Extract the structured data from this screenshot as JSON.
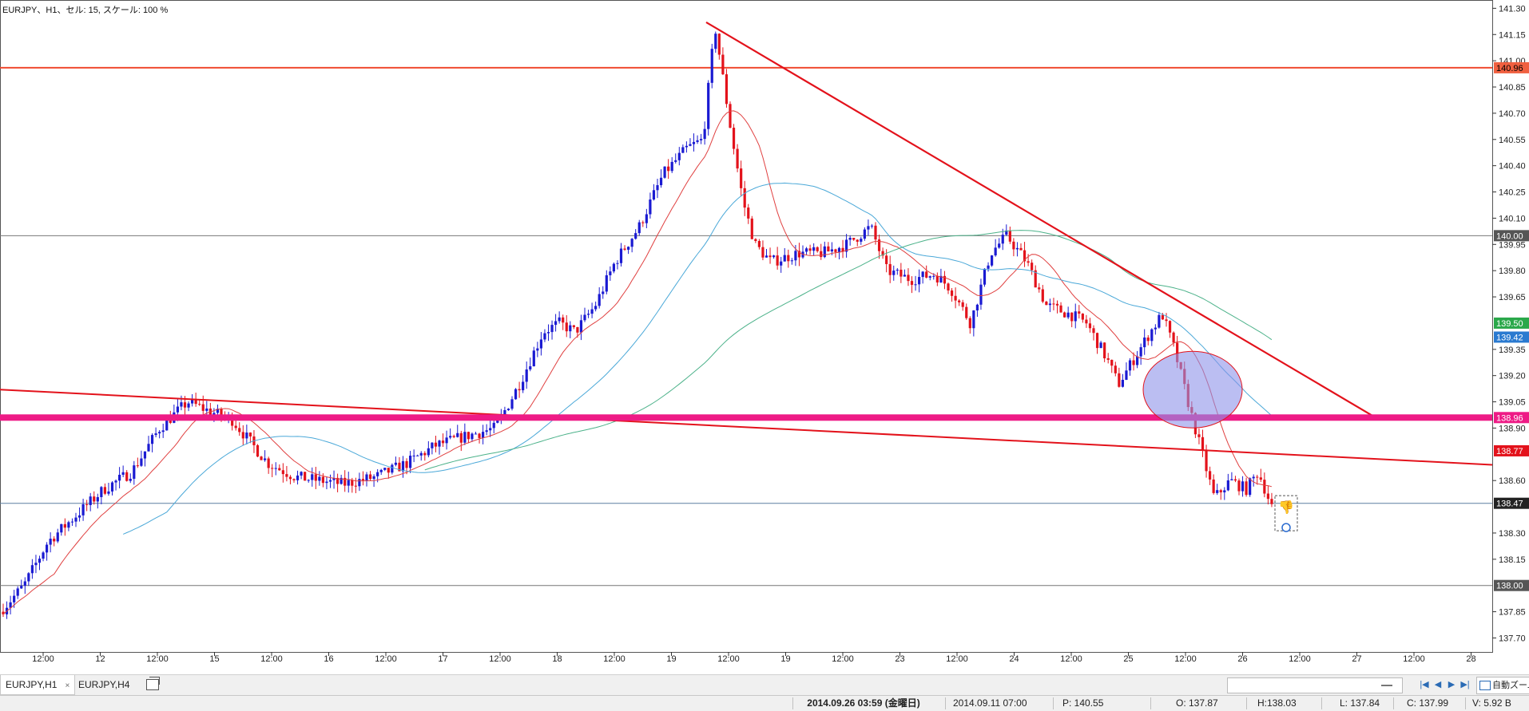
{
  "chart_header": {
    "title": "EURJPY、H1、セル: 15, スケール: 100 %"
  },
  "colors": {
    "bull_candle": "#1a1ad2",
    "bear_candle": "#e3121b",
    "ma_fast": "#e04040",
    "ma_mid": "#4aa8d8",
    "ma_slow": "#4cb28a",
    "trendline": "#e3121b",
    "support_band": "#ee1b86",
    "highlight_ellipse": "#8e92ea"
  },
  "price_axis": {
    "ticks": [
      "141.30",
      "141.15",
      "141.00",
      "140.85",
      "140.70",
      "140.55",
      "140.40",
      "140.25",
      "140.10",
      "139.95",
      "139.80",
      "139.65",
      "139.35",
      "139.20",
      "139.05",
      "138.90",
      "138.60",
      "138.30",
      "138.15",
      "137.85",
      "137.70"
    ],
    "min": 137.62,
    "max": 141.32
  },
  "price_markers": [
    {
      "label": "140.96",
      "value": 140.96,
      "bg": "#f06040",
      "fg": "#000000"
    },
    {
      "label": "140.00",
      "value": 140.0,
      "bg": "#555555",
      "fg": "#ffffff"
    },
    {
      "label": "139.50",
      "value": 139.5,
      "bg": "#2aa84a",
      "fg": "#ffffff"
    },
    {
      "label": "139.42",
      "value": 139.42,
      "bg": "#2a7ad0",
      "fg": "#ffffff"
    },
    {
      "label": "138.96",
      "value": 138.96,
      "bg": "#ee1b86",
      "fg": "#ffffff"
    },
    {
      "label": "138.77",
      "value": 138.77,
      "bg": "#e3121b",
      "fg": "#ffffff"
    },
    {
      "label": "138.47",
      "value": 138.47,
      "bg": "#222222",
      "fg": "#ffffff"
    },
    {
      "label": "138.00",
      "value": 138.0,
      "bg": "#555555",
      "fg": "#ffffff"
    }
  ],
  "time_axis": {
    "labels": [
      "12:00",
      "12",
      "12:00",
      "15",
      "12:00",
      "16",
      "12:00",
      "17",
      "12:00",
      "18",
      "12:00",
      "19",
      "12:00",
      "19",
      "12:00",
      "23",
      "12:00",
      "24",
      "12:00",
      "25",
      "12:00",
      "26",
      "12:00",
      "27",
      "12:00",
      "28"
    ]
  },
  "tabs": [
    {
      "label": "EURJPY,H1",
      "close": "×",
      "active": true
    },
    {
      "label": "EURJPY,H4",
      "active": false
    }
  ],
  "status": {
    "datetime": "2014.09.26 03:59 (金曜日)",
    "cursor_time": "2014.09.11 07:00",
    "price": "P: 140.55",
    "open": "O: 137.87",
    "high": "H:138.03",
    "low": "L: 137.84",
    "close": "C: 137.99",
    "volume": "V: 5.92 B"
  },
  "toolbar": {
    "zoom_label": "自動ズーム"
  }
}
